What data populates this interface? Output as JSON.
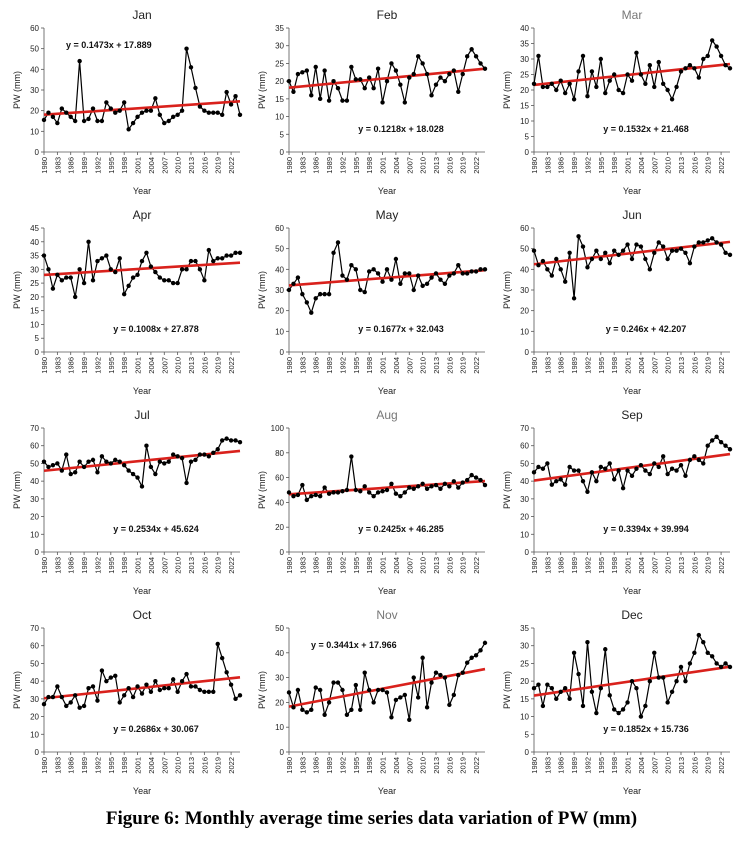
{
  "caption": "Figure 6: Monthly average time series data variation of PW (mm)",
  "chart_data": [
    {
      "type": "line",
      "title": "Jan",
      "xlabel": "Year",
      "ylabel": "PW (mm)",
      "ylim": [
        0,
        60
      ],
      "yticks": [
        0,
        10,
        20,
        30,
        40,
        50,
        60
      ],
      "equation": "y = 0.1473x + 17.889",
      "equation_pos": "top-left",
      "trend": {
        "slope": 0.1473,
        "intercept": 17.889
      },
      "title_color": "#222222",
      "values": [
        15.5,
        19,
        17,
        14,
        21,
        19,
        17,
        15,
        44,
        15,
        16,
        21,
        15,
        15,
        24,
        21,
        19,
        20,
        24,
        11,
        14,
        17,
        19,
        20,
        20,
        26,
        18,
        14,
        15,
        17,
        18,
        20,
        50,
        41,
        31,
        22,
        20,
        19,
        19,
        19,
        18,
        29,
        23,
        27,
        18
      ]
    },
    {
      "type": "line",
      "title": "Feb",
      "xlabel": "Year",
      "ylabel": "PW (mm)",
      "ylim": [
        0,
        35
      ],
      "yticks": [
        0,
        5,
        10,
        15,
        20,
        25,
        30,
        35
      ],
      "equation": "y = 0.1218x + 18.028",
      "equation_pos": "bottom-center",
      "trend": {
        "slope": 0.1218,
        "intercept": 18.028
      },
      "title_color": "#222222",
      "values": [
        20,
        17,
        22,
        22.5,
        23,
        16,
        24,
        15,
        23,
        14.5,
        20,
        18,
        14.5,
        14.5,
        24,
        20.5,
        20.5,
        18,
        21,
        18,
        23.5,
        14,
        20,
        25,
        23,
        19,
        14,
        21,
        22,
        27,
        25,
        22,
        16,
        19,
        21,
        20,
        22,
        23,
        17,
        22,
        27,
        29,
        27,
        25,
        23.5
      ]
    },
    {
      "type": "line",
      "title": "Mar",
      "xlabel": "Year",
      "ylabel": "PW (mm)",
      "ylim": [
        0,
        40
      ],
      "yticks": [
        0,
        5,
        10,
        15,
        20,
        25,
        30,
        35,
        40
      ],
      "equation": "y = 0.1532x + 21.468",
      "equation_pos": "bottom-center",
      "trend": {
        "slope": 0.1532,
        "intercept": 21.468
      },
      "title_color": "#777777",
      "values": [
        22,
        31,
        21,
        21,
        22,
        20,
        23,
        19,
        22,
        17,
        26,
        31,
        18,
        26,
        21,
        30,
        19,
        23,
        25,
        20,
        19,
        25,
        23,
        32,
        25,
        22,
        28,
        21,
        29,
        22,
        20,
        17,
        21,
        26,
        27,
        28,
        27,
        24,
        30,
        31,
        36,
        34,
        31,
        28,
        27
      ]
    },
    {
      "type": "line",
      "title": "Apr",
      "xlabel": "Year",
      "ylabel": "PW (mm)",
      "ylim": [
        0,
        45
      ],
      "yticks": [
        0,
        5,
        10,
        15,
        20,
        25,
        30,
        35,
        40,
        45
      ],
      "equation": "y = 0.1008x + 27.878",
      "equation_pos": "bottom-center",
      "trend": {
        "slope": 0.1008,
        "intercept": 27.878
      },
      "title_color": "#222222",
      "values": [
        35,
        30,
        23,
        28,
        26,
        27,
        27,
        20,
        30,
        25,
        40,
        26,
        33,
        34,
        35,
        30,
        29,
        34,
        21,
        24,
        27,
        28,
        33,
        36,
        31,
        29,
        27,
        26,
        26,
        25,
        25,
        30,
        30,
        33,
        33,
        30,
        26,
        37,
        33,
        34,
        34,
        35,
        35,
        36,
        36
      ]
    },
    {
      "type": "line",
      "title": "May",
      "xlabel": "Year",
      "ylabel": "PW (mm)",
      "ylim": [
        0,
        60
      ],
      "yticks": [
        0,
        10,
        20,
        30,
        40,
        50,
        60
      ],
      "equation": "y = 0.1677x + 32.043",
      "equation_pos": "bottom-center",
      "trend": {
        "slope": 0.1677,
        "intercept": 32.043
      },
      "title_color": "#222222",
      "values": [
        30,
        33,
        36,
        28,
        24,
        19,
        26,
        28,
        28,
        28,
        48,
        53,
        37,
        35,
        42,
        40,
        30,
        29,
        39,
        40,
        38,
        34,
        40,
        35,
        45,
        33,
        38,
        38,
        30,
        37,
        32,
        33,
        36,
        38,
        35,
        33,
        37,
        38,
        42,
        38,
        38,
        39,
        39,
        40,
        40
      ]
    },
    {
      "type": "line",
      "title": "Jun",
      "xlabel": "Year",
      "ylabel": "PW (mm)",
      "ylim": [
        0,
        60
      ],
      "yticks": [
        0,
        10,
        20,
        30,
        40,
        50,
        60
      ],
      "equation": "y = 0.246x + 42.207",
      "equation_pos": "bottom-center",
      "trend": {
        "slope": 0.246,
        "intercept": 42.207
      },
      "title_color": "#222222",
      "values": [
        49,
        42,
        44,
        40,
        37,
        45,
        40,
        34,
        48,
        26,
        56,
        51,
        41,
        45,
        49,
        45,
        48,
        43,
        49,
        47,
        49,
        52,
        45,
        52,
        51,
        45,
        40,
        48,
        53,
        51,
        45,
        49,
        49,
        50,
        48,
        43,
        51,
        53,
        53,
        54,
        55,
        53,
        52,
        48,
        47
      ]
    },
    {
      "type": "line",
      "title": "Jul",
      "xlabel": "Year",
      "ylabel": "PW (mm)",
      "ylim": [
        0,
        70
      ],
      "yticks": [
        0,
        10,
        20,
        30,
        40,
        50,
        60,
        70
      ],
      "equation": "y = 0.2534x + 45.624",
      "equation_pos": "bottom-center",
      "trend": {
        "slope": 0.2534,
        "intercept": 45.624
      },
      "title_color": "#222222",
      "values": [
        51,
        48,
        49,
        50,
        46,
        55,
        44,
        45,
        51,
        48,
        51,
        52,
        45,
        54,
        51,
        50,
        52,
        51,
        49,
        46,
        44,
        42,
        37,
        60,
        48,
        44,
        51,
        50,
        51,
        55,
        54,
        53,
        39,
        51,
        52,
        55,
        55,
        54,
        56,
        58,
        63,
        64,
        63,
        63,
        62
      ]
    },
    {
      "type": "line",
      "title": "Aug",
      "xlabel": "Year",
      "ylabel": "PW (mm)",
      "ylim": [
        0,
        100
      ],
      "yticks": [
        0,
        20,
        40,
        60,
        80,
        100
      ],
      "equation": "y = 0.2425x + 46.285",
      "equation_pos": "bottom-center",
      "trend": {
        "slope": 0.2425,
        "intercept": 46.285
      },
      "title_color": "#777777",
      "values": [
        48,
        45,
        46,
        54,
        42,
        45,
        46,
        45,
        52,
        47,
        48,
        48,
        49,
        50,
        77,
        50,
        49,
        53,
        48,
        45,
        48,
        49,
        50,
        55,
        47,
        45,
        48,
        52,
        51,
        53,
        55,
        51,
        53,
        54,
        51,
        55,
        53,
        57,
        52,
        56,
        58,
        62,
        60,
        58,
        54
      ]
    },
    {
      "type": "line",
      "title": "Sep",
      "xlabel": "Year",
      "ylabel": "PW (mm)",
      "ylim": [
        0,
        70
      ],
      "yticks": [
        0,
        10,
        20,
        30,
        40,
        50,
        60,
        70
      ],
      "equation": "y = 0.3394x + 39.994",
      "equation_pos": "bottom-center",
      "trend": {
        "slope": 0.3394,
        "intercept": 39.994
      },
      "title_color": "#222222",
      "values": [
        45,
        48,
        47,
        50,
        38,
        40,
        41,
        38,
        48,
        46,
        46,
        40,
        34,
        45,
        40,
        48,
        47,
        50,
        41,
        46,
        36,
        46,
        43,
        47,
        49,
        46,
        44,
        50,
        48,
        54,
        44,
        47,
        46,
        49,
        43,
        52,
        54,
        52,
        50,
        60,
        63,
        65,
        62,
        60,
        58
      ]
    },
    {
      "type": "line",
      "title": "Oct",
      "xlabel": "Year",
      "ylabel": "PW (mm)",
      "ylim": [
        0,
        70
      ],
      "yticks": [
        0,
        10,
        20,
        30,
        40,
        50,
        60,
        70
      ],
      "equation": "y = 0.2686x + 30.067",
      "equation_pos": "bottom-center",
      "trend": {
        "slope": 0.2686,
        "intercept": 30.067
      },
      "title_color": "#222222",
      "values": [
        27,
        31,
        31,
        37,
        31,
        26,
        28,
        32,
        25,
        26,
        36,
        37,
        29,
        46,
        40,
        42,
        43,
        28,
        32,
        36,
        31,
        37,
        33,
        38,
        34,
        40,
        35,
        36,
        36,
        41,
        34,
        40,
        44,
        37,
        37,
        35,
        34,
        34,
        34,
        61,
        53,
        45,
        38,
        30,
        32
      ]
    },
    {
      "type": "line",
      "title": "Nov",
      "xlabel": "Year",
      "ylabel": "PW (mm)",
      "ylim": [
        0,
        50
      ],
      "yticks": [
        0,
        10,
        20,
        30,
        40,
        50
      ],
      "equation": "y = 0.3441x + 17.966",
      "equation_pos": "top-left",
      "trend": {
        "slope": 0.3441,
        "intercept": 17.966
      },
      "title_color": "#777777",
      "values": [
        24,
        18,
        25,
        17,
        16,
        17,
        26,
        25,
        15,
        20,
        28,
        28,
        25,
        15,
        17,
        27,
        17,
        32,
        25,
        20,
        25,
        25,
        24,
        14,
        21,
        22,
        23,
        13,
        30,
        22,
        38,
        18,
        28,
        32,
        31,
        30,
        19,
        23,
        31,
        32,
        36,
        38,
        39,
        41,
        44
      ]
    },
    {
      "type": "line",
      "title": "Dec",
      "xlabel": "Year",
      "ylabel": "PW (mm)",
      "ylim": [
        0,
        35
      ],
      "yticks": [
        0,
        5,
        10,
        15,
        20,
        25,
        30,
        35
      ],
      "equation": "y = 0.1852x + 15.736",
      "equation_pos": "bottom-center",
      "trend": {
        "slope": 0.1852,
        "intercept": 15.736
      },
      "title_color": "#222222",
      "values": [
        18,
        19,
        13,
        19,
        18,
        15,
        17,
        18,
        15,
        28,
        22,
        13,
        31,
        17,
        11,
        18,
        29,
        16,
        12,
        11,
        12,
        14,
        20,
        18,
        10,
        13,
        20,
        28,
        21,
        21,
        14,
        17,
        20,
        24,
        20,
        25,
        28,
        33,
        31,
        28,
        27,
        25,
        24,
        25,
        24
      ]
    }
  ],
  "shared": {
    "x_tick_labels": [
      "1980",
      "1983",
      "1986",
      "1989",
      "1992",
      "1995",
      "1998",
      "2001",
      "2004",
      "2007",
      "2010",
      "2013",
      "2016",
      "2019",
      "2022"
    ],
    "x_start_year": 1980,
    "x_end_year": 2024,
    "line_color": "#000000",
    "trend_color": "#d9211c"
  }
}
